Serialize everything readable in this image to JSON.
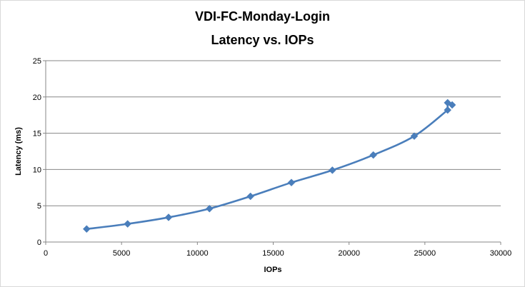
{
  "chart_data": {
    "type": "scatter",
    "title": "VDI-FC-Monday-Login",
    "subtitle": "Latency vs. IOPs",
    "xlabel": "IOPs",
    "ylabel": "Latency (ms)",
    "xlim": [
      0,
      30000
    ],
    "ylim": [
      0,
      25
    ],
    "xticks": [
      "0",
      "5000",
      "10000",
      "15000",
      "20000",
      "25000",
      "30000"
    ],
    "yticks": [
      "0",
      "5",
      "10",
      "15",
      "20",
      "25"
    ],
    "grid": true,
    "legend": "none",
    "smooth_line": true,
    "marker": "diamond",
    "color": "#4a7ebb",
    "series": [
      {
        "x": [
          2700,
          5400,
          8100,
          10800,
          13500,
          16200,
          18900,
          21600,
          24300,
          26500,
          26500,
          26800
        ],
        "y": [
          1.8,
          2.5,
          3.4,
          4.6,
          6.3,
          8.2,
          9.9,
          12.0,
          14.6,
          18.2,
          19.2,
          18.9
        ]
      }
    ]
  }
}
